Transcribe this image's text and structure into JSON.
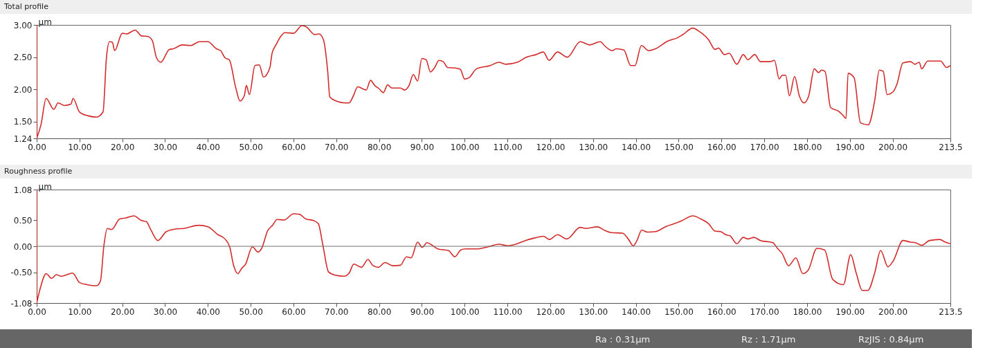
{
  "chart_data": [
    {
      "type": "line",
      "title": "Total profile",
      "ylabel": "µm",
      "xlim": [
        0,
        213.5
      ],
      "ylim": [
        1.24,
        3.0
      ],
      "xticks": [
        {
          "value": 0,
          "label": "0.00"
        },
        {
          "value": 10,
          "label": "10.00"
        },
        {
          "value": 20,
          "label": "20.00"
        },
        {
          "value": 30,
          "label": "30.00"
        },
        {
          "value": 40,
          "label": "40.00"
        },
        {
          "value": 50,
          "label": "50.00"
        },
        {
          "value": 60,
          "label": "60.00"
        },
        {
          "value": 70,
          "label": "70.00"
        },
        {
          "value": 80,
          "label": "80.00"
        },
        {
          "value": 90,
          "label": "90.00"
        },
        {
          "value": 100,
          "label": "100.00"
        },
        {
          "value": 110,
          "label": "110.00"
        },
        {
          "value": 120,
          "label": "120.00"
        },
        {
          "value": 130,
          "label": "130.00"
        },
        {
          "value": 140,
          "label": "140.00"
        },
        {
          "value": 150,
          "label": "150.00"
        },
        {
          "value": 160,
          "label": "160.00"
        },
        {
          "value": 170,
          "label": "170.00"
        },
        {
          "value": 180,
          "label": "180.00"
        },
        {
          "value": 190,
          "label": "190.00"
        },
        {
          "value": 200,
          "label": "200.00"
        },
        213.5
      ],
      "yticks": [
        {
          "value": 1.24,
          "label": "1.24"
        },
        {
          "value": 1.5,
          "label": "1.50"
        },
        {
          "value": 2,
          "label": "2.00"
        },
        {
          "value": 2.5,
          "label": "2.50"
        },
        {
          "value": 3,
          "label": "3.00"
        }
      ],
      "grid": false,
      "x": [
        0,
        1,
        2.2,
        4,
        5,
        6.5,
        8,
        8.5,
        10,
        12,
        14,
        15.5,
        16.3,
        17,
        17.7,
        18.2,
        20,
        21,
        23,
        24.5,
        26,
        27,
        28,
        29,
        31,
        32,
        34,
        36,
        38,
        40,
        42,
        43,
        44,
        45,
        46.5,
        47.5,
        48.5,
        49,
        49.7,
        51,
        52,
        53,
        54.5,
        55,
        56,
        57,
        58,
        60,
        62,
        63,
        65,
        66,
        67,
        68,
        68.5,
        70,
        72,
        73,
        74,
        75,
        77,
        78,
        79,
        80,
        81,
        82,
        83,
        85,
        86,
        87,
        88,
        89,
        90,
        91,
        92,
        93,
        94,
        95,
        96,
        98,
        99,
        100,
        101,
        102.8,
        106,
        108,
        109.6,
        112.3,
        114.5,
        116.7,
        118.4,
        119.7,
        121.7,
        124,
        127,
        129.2,
        131.7,
        132.8,
        134.5,
        135.4,
        137.2,
        138.8,
        139.8,
        141.3,
        143,
        144.6,
        147.5,
        149.7,
        151,
        153.3,
        154.8,
        157,
        158.5,
        159.3,
        160.7,
        161.8,
        163.6,
        165.1,
        166.2,
        167.8,
        169.1,
        171.3,
        172.4,
        173.5,
        174.2,
        175,
        175.9,
        177.1,
        178.2,
        179.3,
        180.4,
        181.7,
        182.7,
        183.4,
        184.2,
        185.5,
        187.4,
        188.5,
        189.1,
        189.6,
        191,
        192.5,
        194.3,
        195.8,
        196.9,
        197.8,
        198.7,
        200.2,
        201,
        202.4,
        204.2,
        205.2,
        206.2,
        206.8,
        208.2,
        211.2,
        212.6,
        213.5
      ],
      "series": [
        {
          "color": "#d42a2a",
          "values": [
            1.24,
            1.45,
            1.86,
            1.69,
            1.79,
            1.75,
            1.77,
            1.86,
            1.65,
            1.59,
            1.57,
            1.65,
            2.49,
            2.74,
            2.73,
            2.6,
            2.87,
            2.86,
            2.92,
            2.83,
            2.82,
            2.76,
            2.49,
            2.42,
            2.62,
            2.63,
            2.69,
            2.68,
            2.74,
            2.74,
            2.63,
            2.6,
            2.49,
            2.46,
            2.03,
            1.82,
            1.9,
            2.06,
            1.92,
            2.37,
            2.38,
            2.19,
            2.34,
            2.56,
            2.7,
            2.82,
            2.88,
            2.87,
            2.99,
            2.97,
            2.85,
            2.86,
            2.77,
            2.28,
            1.88,
            1.82,
            1.79,
            1.79,
            1.9,
            2.04,
            1.99,
            2.14,
            2.06,
            2.01,
            1.95,
            2.07,
            2.02,
            2.02,
            1.99,
            2.06,
            2.23,
            2.13,
            2.48,
            2.46,
            2.27,
            2.34,
            2.45,
            2.43,
            2.34,
            2.33,
            2.31,
            2.16,
            2.18,
            2.32,
            2.37,
            2.42,
            2.39,
            2.42,
            2.5,
            2.54,
            2.58,
            2.45,
            2.58,
            2.5,
            2.74,
            2.69,
            2.74,
            2.67,
            2.6,
            2.63,
            2.61,
            2.37,
            2.37,
            2.68,
            2.6,
            2.63,
            2.75,
            2.8,
            2.85,
            2.95,
            2.9,
            2.77,
            2.62,
            2.64,
            2.54,
            2.56,
            2.39,
            2.54,
            2.46,
            2.54,
            2.43,
            2.43,
            2.45,
            2.16,
            2.22,
            2.22,
            1.9,
            2.2,
            1.9,
            1.79,
            1.9,
            2.32,
            2.26,
            2.3,
            2.28,
            1.72,
            1.66,
            1.59,
            1.55,
            2.25,
            2.18,
            1.48,
            1.45,
            1.82,
            2.3,
            2.28,
            1.92,
            1.97,
            2.08,
            2.41,
            2.43,
            2.39,
            2.42,
            2.32,
            2.44,
            2.44,
            2.34,
            2.37
          ]
        }
      ]
    },
    {
      "type": "line",
      "title": "Roughness profile",
      "ylabel": "µm",
      "xlim": [
        0,
        213.5
      ],
      "ylim": [
        -1.08,
        1.08
      ],
      "xticks": [
        {
          "value": 0,
          "label": "0.00"
        },
        {
          "value": 10,
          "label": "10.00"
        },
        {
          "value": 20,
          "label": "20.00"
        },
        {
          "value": 30,
          "label": "30.00"
        },
        {
          "value": 40,
          "label": "40.00"
        },
        {
          "value": 50,
          "label": "50.00"
        },
        {
          "value": 60,
          "label": "60.00"
        },
        {
          "value": 70,
          "label": "70.00"
        },
        {
          "value": 80,
          "label": "80.00"
        },
        {
          "value": 90,
          "label": "90.00"
        },
        {
          "value": 100,
          "label": "100.00"
        },
        {
          "value": 110,
          "label": "110.00"
        },
        {
          "value": 120,
          "label": "120.00"
        },
        {
          "value": 130,
          "label": "130.00"
        },
        {
          "value": 140,
          "label": "140.00"
        },
        {
          "value": 150,
          "label": "150.00"
        },
        {
          "value": 160,
          "label": "160.00"
        },
        {
          "value": 170,
          "label": "170.00"
        },
        {
          "value": 180,
          "label": "180.00"
        },
        {
          "value": 190,
          "label": "190.00"
        },
        {
          "value": 200,
          "label": "200.00"
        },
        213.5
      ],
      "yticks": [
        {
          "value": -1.08,
          "label": "-1.08"
        },
        {
          "value": -0.5,
          "label": "-0.50"
        },
        {
          "value": 0,
          "label": "0.00"
        },
        {
          "value": 0.5,
          "label": "0.50"
        },
        {
          "value": 1.08,
          "label": "1.08"
        }
      ],
      "grid": false,
      "ref_lines": [
        {
          "axis": "y",
          "value": 0,
          "color": "#707070"
        }
      ],
      "annotations": [
        "Ra : 0.31µm",
        "Rz : 1.71µm",
        "RzJIS : 0.84µm"
      ],
      "x": [
        0,
        0.9,
        2.2,
        3.5,
        4.6,
        5.7,
        7.1,
        8.4,
        10,
        11.8,
        14,
        14.9,
        15.7,
        16.5,
        17.5,
        19.4,
        20.9,
        22.7,
        24.5,
        25.6,
        26.7,
        28.3,
        30.3,
        32.5,
        34.3,
        37.9,
        40.1,
        42.2,
        44.1,
        45.1,
        46,
        47,
        47.9,
        48.8,
        50.4,
        51.7,
        52.5,
        54,
        55.1,
        56.2,
        57.8,
        60,
        61.4,
        62.9,
        64.7,
        65.8,
        66.9,
        68.2,
        69.8,
        71.8,
        73,
        74.1,
        75.9,
        77.4,
        78.5,
        79.8,
        81.4,
        83.2,
        85,
        86.4,
        87.5,
        89,
        90.1,
        91.2,
        92.4,
        93.7,
        96.2,
        97.7,
        99.1,
        100.2,
        102.8,
        105,
        108,
        110.1,
        112,
        114.2,
        116.4,
        118.4,
        119.8,
        121.7,
        123.9,
        127,
        128.4,
        131,
        132.8,
        134.3,
        136.9,
        138.3,
        139.4,
        140.2,
        141.4,
        142.7,
        144.6,
        147.1,
        149.3,
        150.8,
        153.3,
        155.2,
        157,
        158.5,
        159.8,
        161,
        162,
        163.6,
        165.1,
        166.2,
        167.6,
        169.1,
        172,
        173.1,
        174.2,
        175.7,
        177.4,
        179,
        180.3,
        182.3,
        184.1,
        186,
        188.5,
        190.2,
        191.5,
        192.9,
        194.2,
        195.8,
        197.2,
        198.9,
        200.2,
        202.4,
        204.2,
        205.3,
        206.8,
        208.6,
        211,
        212.3,
        213.5
      ],
      "series": [
        {
          "color": "#d42a2a",
          "values": [
            -1.08,
            -0.78,
            -0.52,
            -0.61,
            -0.54,
            -0.57,
            -0.54,
            -0.51,
            -0.69,
            -0.73,
            -0.75,
            -0.66,
            0.01,
            0.34,
            0.32,
            0.52,
            0.54,
            0.58,
            0.49,
            0.47,
            0.31,
            0.11,
            0.28,
            0.33,
            0.34,
            0.4,
            0.37,
            0.23,
            0.13,
            -0.01,
            -0.36,
            -0.52,
            -0.42,
            -0.34,
            -0.01,
            -0.11,
            -0.05,
            0.3,
            0.4,
            0.51,
            0.5,
            0.62,
            0.61,
            0.52,
            0.49,
            0.43,
            0.01,
            -0.49,
            -0.55,
            -0.57,
            -0.51,
            -0.34,
            -0.4,
            -0.25,
            -0.36,
            -0.4,
            -0.31,
            -0.37,
            -0.36,
            -0.2,
            -0.22,
            0.08,
            -0.02,
            0.07,
            0.02,
            -0.05,
            -0.08,
            -0.2,
            -0.07,
            -0.05,
            -0.05,
            -0.02,
            0.04,
            0.01,
            0.04,
            0.11,
            0.16,
            0.19,
            0.13,
            0.22,
            0.14,
            0.36,
            0.34,
            0.37,
            0.3,
            0.26,
            0.25,
            0.13,
            0.01,
            0.1,
            0.31,
            0.27,
            0.28,
            0.38,
            0.44,
            0.49,
            0.58,
            0.52,
            0.43,
            0.29,
            0.28,
            0.22,
            0.2,
            0.05,
            0.17,
            0.14,
            0.17,
            0.11,
            0.07,
            -0.04,
            -0.14,
            -0.37,
            -0.22,
            -0.52,
            -0.45,
            -0.04,
            -0.07,
            -0.63,
            -0.73,
            -0.16,
            -0.51,
            -0.84,
            -0.84,
            -0.51,
            -0.08,
            -0.39,
            -0.27,
            0.11,
            0.08,
            0.07,
            0.02,
            0.11,
            0.13,
            0.08,
            0.05
          ]
        }
      ]
    }
  ]
}
